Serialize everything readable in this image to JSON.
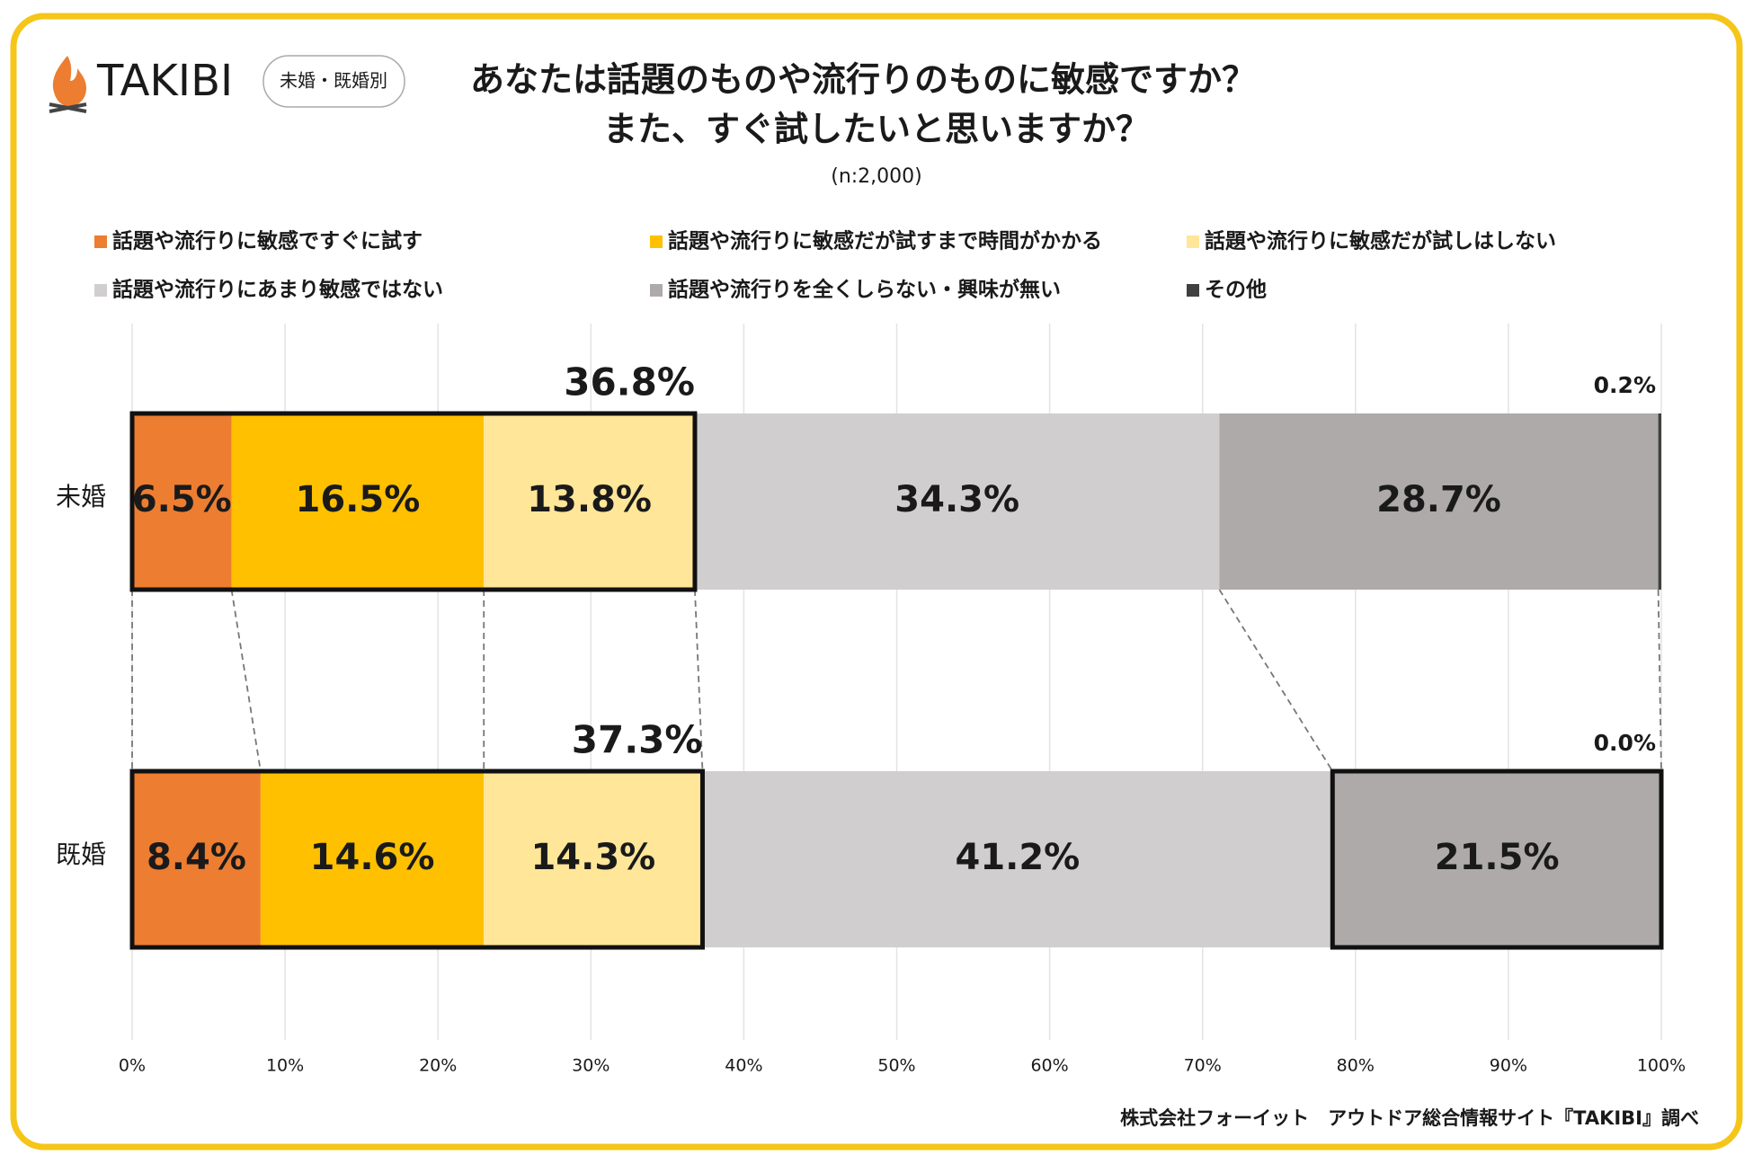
{
  "brand": "TAKIBI",
  "badge": "未婚・既婚別",
  "chart_data": {
    "type": "stacked-bar-horizontal",
    "title": [
      "あなたは話題のものや流行りのものに敏感ですか？",
      "また、すぐ試したいと思いますか？"
    ],
    "subtitle": "(n:2,000)",
    "categories": [
      "未婚",
      "既婚"
    ],
    "series": [
      {
        "name": "話題や流行りに敏感ですぐに試す",
        "color": "#ed7d31",
        "label_color": "#ffffff",
        "values": [
          6.5,
          8.4
        ],
        "value_labels": [
          "6.5%",
          "8.4%"
        ]
      },
      {
        "name": "話題や流行りに敏感だが試すまで時間がかかる",
        "color": "#ffc000",
        "label_color": "#404040",
        "values": [
          16.5,
          14.6
        ],
        "value_labels": [
          "16.5%",
          "14.6%"
        ]
      },
      {
        "name": "話題や流行りに敏感だが試しはしない",
        "color": "#ffe699",
        "label_color": "#404040",
        "values": [
          13.8,
          14.3
        ],
        "value_labels": [
          "13.8%",
          "14.3%"
        ]
      },
      {
        "name": "話題や流行りにあまり敏感ではない",
        "color": "#d0cece",
        "label_color": "#404040",
        "values": [
          34.3,
          41.2
        ],
        "value_labels": [
          "34.3%",
          "41.2%"
        ]
      },
      {
        "name": "話題や流行りを全くしらない・興味が無い",
        "color": "#aeaaaa",
        "label_color": "#ffffff",
        "values": [
          28.7,
          21.5
        ],
        "value_labels": [
          "28.7%",
          "21.5%"
        ]
      },
      {
        "name": "その他",
        "color": "#404040",
        "label_color": "#404040",
        "values": [
          0.2,
          0.0
        ],
        "value_labels": [
          "0.2%",
          "0.0%"
        ]
      }
    ],
    "annotations": [
      {
        "value": 36.8,
        "label": "36.8%"
      },
      {
        "value": 37.3,
        "label": "37.3%"
      }
    ],
    "xlim": [
      0,
      100
    ],
    "xticks": [
      {
        "value": 0,
        "label": "0%"
      },
      {
        "value": 10,
        "label": "10%"
      },
      {
        "value": 20,
        "label": "20%"
      },
      {
        "value": 30,
        "label": "30%"
      },
      {
        "value": 40,
        "label": "40%"
      },
      {
        "value": 50,
        "label": "50%"
      },
      {
        "value": 60,
        "label": "60%"
      },
      {
        "value": 70,
        "label": "70%"
      },
      {
        "value": 80,
        "label": "80%"
      },
      {
        "value": 90,
        "label": "90%"
      },
      {
        "value": 100,
        "label": "100%"
      }
    ],
    "grid": true,
    "source": "株式会社フォーイット　アウトドア総合情報サイト『TAKIBI』調べ"
  }
}
